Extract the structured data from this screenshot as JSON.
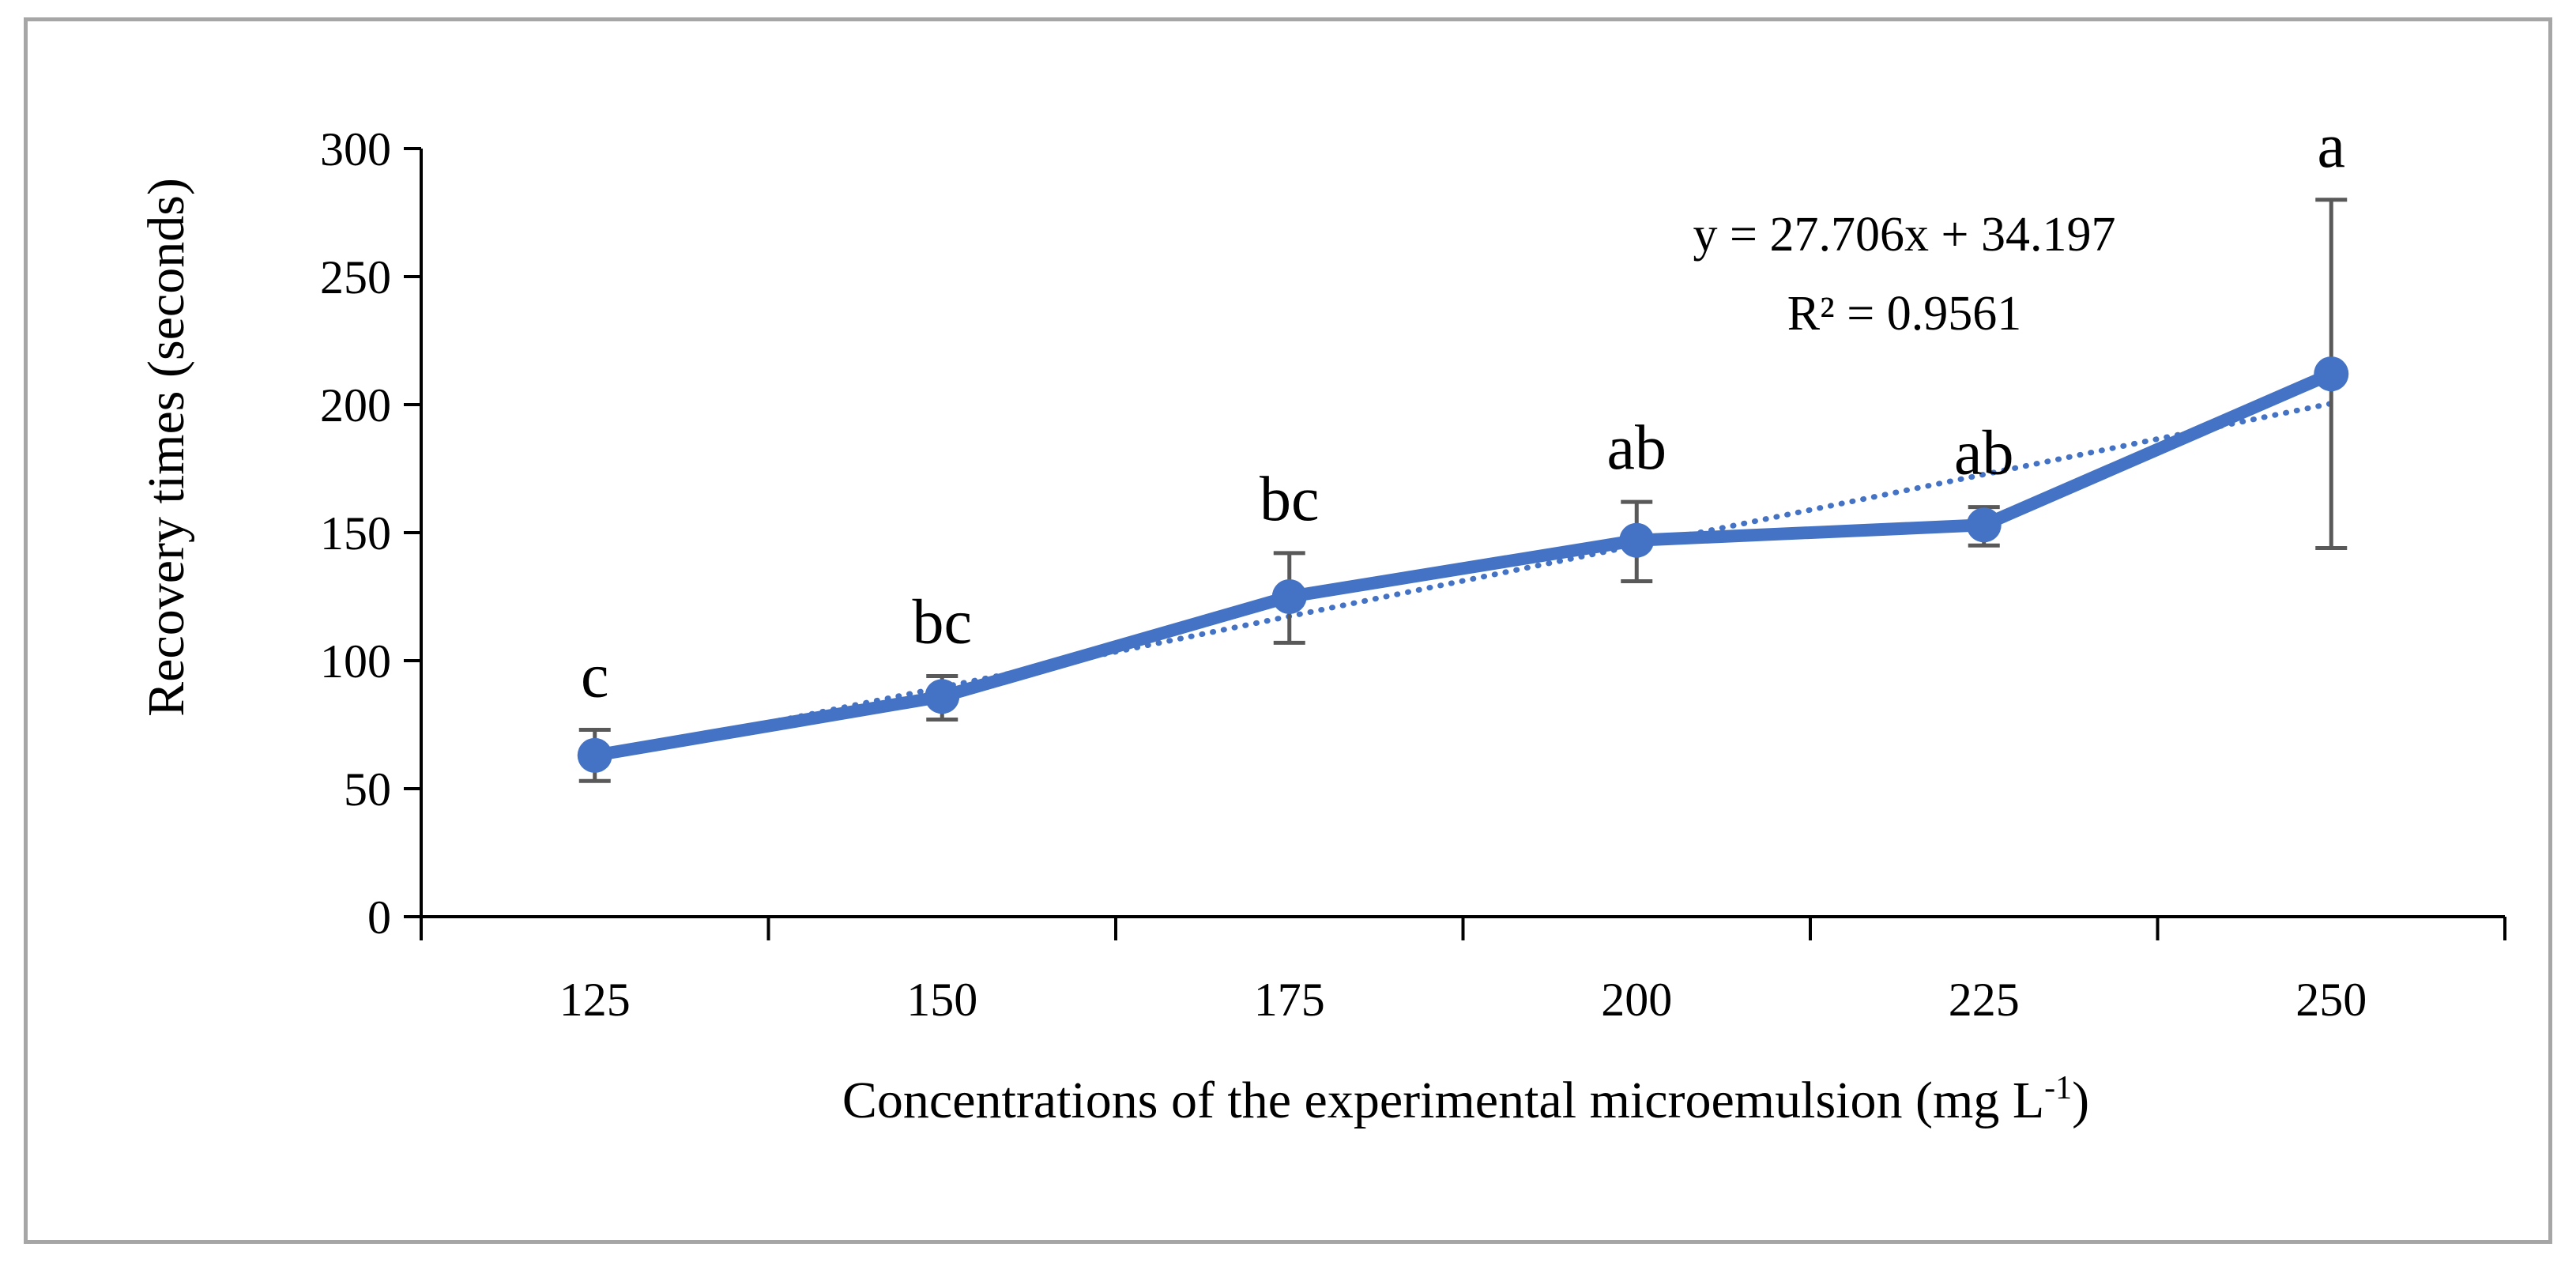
{
  "chart_data": {
    "type": "line",
    "title": "",
    "xlabel": "Concentrations of the experimental microemulsion (mg L",
    "xlabel_superscript": "-1",
    "xlabel_suffix": ")",
    "ylabel": "Recovery times (seconds)",
    "categories": [
      "125",
      "150",
      "175",
      "200",
      "225",
      "250"
    ],
    "ylim": [
      0,
      300
    ],
    "yticks": [
      "0",
      "50",
      "100",
      "150",
      "200",
      "250",
      "300"
    ],
    "grid": false,
    "series": [
      {
        "name": "Recovery time",
        "color": "#4472c4",
        "values": [
          63,
          86,
          125,
          147,
          153,
          212
        ],
        "error_low": [
          53,
          77,
          107,
          131,
          145,
          144
        ],
        "error_high": [
          73,
          94,
          142,
          162,
          160,
          280
        ]
      }
    ],
    "trendline": {
      "type": "linear",
      "style": "dotted",
      "color": "#4472c4",
      "slope": 27.706,
      "intercept": 34.197,
      "equation": "y = 27.706x + 34.197",
      "r_squared": "R² = 0.9561"
    },
    "significance_labels": [
      "c",
      "bc",
      "bc",
      "ab",
      "ab",
      "a"
    ],
    "error_bar_color": "#595959",
    "axis_color": "#000000"
  }
}
